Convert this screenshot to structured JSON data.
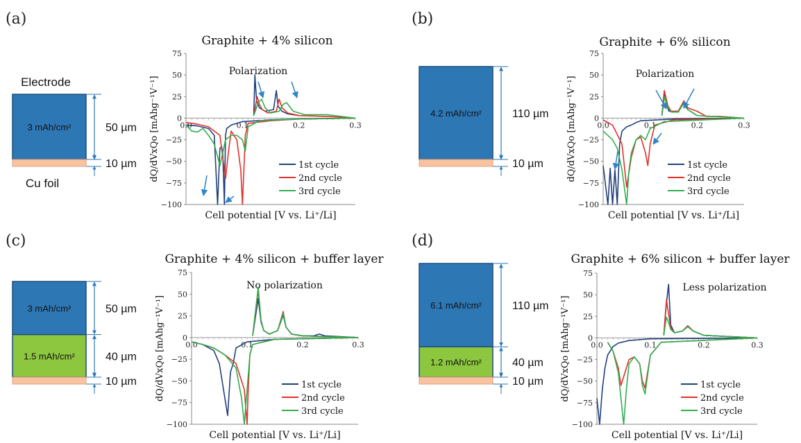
{
  "panels": [
    {
      "label": "(a)",
      "diagram": {
        "electrode_label": "Electrode",
        "foil_label": "Cu foil",
        "layers": [
          {
            "text": "3 mAh/cm²",
            "thickness": "50 µm",
            "color": "#2e77b5"
          }
        ],
        "foil_thickness": "10 µm"
      },
      "chart": {
        "title": "Graphite + 4% silicon",
        "annotation": "Polarization",
        "xlabel": "Cell potential [V vs. Li⁺/Li]",
        "ylabel": "dQ/dVxQo [mAhg⁻¹V⁻¹]"
      }
    },
    {
      "label": "(b)",
      "diagram": {
        "electrode_label": "",
        "foil_label": "",
        "layers": [
          {
            "text": "4.2 mAh/cm²",
            "thickness": "110 µm",
            "color": "#2e77b5"
          }
        ],
        "foil_thickness": "10 µm"
      },
      "chart": {
        "title": "Graphite + 6% silicon",
        "annotation": "Polarization",
        "xlabel": "Cell potential [V vs. Li⁺/Li]",
        "ylabel": "dQ/dVxQo [mAhg⁻¹V⁻¹]"
      }
    },
    {
      "label": "(c)",
      "diagram": {
        "electrode_label": "",
        "foil_label": "",
        "layers": [
          {
            "text": "3 mAh/cm²",
            "thickness": "50 µm",
            "color": "#2e77b5"
          },
          {
            "text": "1.5 mAh/cm²",
            "thickness": "40 µm",
            "color": "#8dc63f"
          }
        ],
        "foil_thickness": "10 µm"
      },
      "chart": {
        "title": "Graphite + 4% silicon + buffer layer",
        "annotation": "No polarization",
        "xlabel": "Cell potential [V vs. Li⁺/Li]",
        "ylabel": "dQ/dVxQo [mAhg⁻¹V⁻¹]"
      }
    },
    {
      "label": "(d)",
      "diagram": {
        "electrode_label": "",
        "foil_label": "",
        "layers": [
          {
            "text": "6.1 mAh/cm²",
            "thickness": "110 µm",
            "color": "#2e77b5"
          },
          {
            "text": "1.2 mAh/cm²",
            "thickness": "40 µm",
            "color": "#8dc63f"
          }
        ],
        "foil_thickness": "10 µm"
      },
      "chart": {
        "title": "Graphite + 6% silicon + buffer layer",
        "annotation": "Less polarization",
        "xlabel": "Cell potential [V vs. Li⁺/Li]",
        "ylabel": "dQ/dVxQo [mAhg⁻¹V⁻¹]"
      }
    }
  ],
  "series_colors": {
    "1st cycle": "#1f3f7a",
    "2nd cycle": "#e0302a",
    "3rd cycle": "#2fae4e"
  },
  "foil_color": "#f7c3a0",
  "arrow_color": "#2e86c8",
  "chart_data": [
    {
      "type": "line",
      "title": "Graphite + 4% silicon",
      "xlabel": "Cell potential [V vs. Li⁺/Li]",
      "ylabel": "dQ/dVxQo [mAhg⁻¹V⁻¹]",
      "xlim": [
        0,
        0.3
      ],
      "ylim": [
        -100,
        75
      ],
      "xticks": [
        "0.0",
        "0.1",
        "0.2",
        "0.3"
      ],
      "yticks": [
        "75",
        "50",
        "25",
        "0",
        "-25",
        "-50",
        "-75",
        "-100"
      ],
      "legend_position": "bottom-right",
      "series": [
        {
          "name": "1st cycle",
          "x": [
            0.0,
            0.02,
            0.04,
            0.05,
            0.053,
            0.056,
            0.06,
            0.063,
            0.065,
            0.068,
            0.07,
            0.072,
            0.08,
            0.1,
            0.15,
            0.2,
            0.3
          ],
          "y": [
            -8,
            -9,
            -12,
            -20,
            -60,
            -100,
            -35,
            -33,
            -40,
            -100,
            -20,
            -12,
            -8,
            -4,
            -2,
            -1,
            0
          ]
        },
        {
          "name": "2nd cycle",
          "x": [
            0.0,
            0.02,
            0.04,
            0.06,
            0.07,
            0.075,
            0.08,
            0.09,
            0.097,
            0.1,
            0.105,
            0.11,
            0.15,
            0.2,
            0.3
          ],
          "y": [
            -5,
            -7,
            -10,
            -20,
            -70,
            -40,
            -15,
            -25,
            -60,
            -100,
            -20,
            -6,
            -3,
            -1,
            0
          ]
        },
        {
          "name": "3rd cycle",
          "x": [
            0.0,
            0.01,
            0.02,
            0.03,
            0.04,
            0.05,
            0.06,
            0.065,
            0.07,
            0.08,
            0.09,
            0.1,
            0.105,
            0.11,
            0.13,
            0.2,
            0.3
          ],
          "y": [
            -8,
            -15,
            -16,
            -12,
            -20,
            -30,
            -55,
            -40,
            -25,
            -20,
            -20,
            -25,
            -38,
            -10,
            -3,
            -1,
            0
          ]
        },
        {
          "name": "1st cycle",
          "x": [
            0.12,
            0.122,
            0.125,
            0.13,
            0.14,
            0.155,
            0.16,
            0.163,
            0.17,
            0.18,
            0.2
          ],
          "y": [
            3,
            50,
            20,
            12,
            8,
            10,
            32,
            14,
            8,
            5,
            3
          ]
        },
        {
          "name": "2nd cycle",
          "x": [
            0.12,
            0.126,
            0.13,
            0.135,
            0.145,
            0.16,
            0.165,
            0.17,
            0.18,
            0.2,
            0.25,
            0.3
          ],
          "y": [
            3,
            25,
            16,
            10,
            6,
            8,
            22,
            12,
            6,
            3,
            2,
            0
          ]
        },
        {
          "name": "3rd cycle",
          "x": [
            0.12,
            0.128,
            0.134,
            0.14,
            0.15,
            0.165,
            0.172,
            0.178,
            0.19,
            0.21,
            0.25,
            0.3
          ],
          "y": [
            3,
            18,
            22,
            12,
            6,
            8,
            16,
            18,
            8,
            4,
            4,
            0
          ]
        }
      ]
    },
    {
      "type": "line",
      "title": "Graphite + 6% silicon",
      "xlabel": "Cell potential [V vs. Li⁺/Li]",
      "ylabel": "dQ/dVxQo [mAhg⁻¹V⁻¹]",
      "xlim": [
        0,
        0.3
      ],
      "ylim": [
        -100,
        75
      ],
      "xticks": [
        "0.0",
        "0.1",
        "0.2",
        "0.3"
      ],
      "yticks": [
        "75",
        "50",
        "25",
        "0",
        "-25",
        "-50",
        "-75",
        "-100"
      ],
      "legend_position": "bottom-right",
      "series": [
        {
          "name": "1st cycle",
          "x": [
            0.0,
            0.01,
            0.015,
            0.02,
            0.025,
            0.03,
            0.035,
            0.04,
            0.05,
            0.06,
            0.07,
            0.08,
            0.15,
            0.3
          ],
          "y": [
            -55,
            -100,
            -58,
            -100,
            -60,
            -100,
            -30,
            -15,
            -10,
            -8,
            -5,
            -3,
            -1,
            0
          ]
        },
        {
          "name": "2nd cycle",
          "x": [
            0.0,
            0.02,
            0.04,
            0.05,
            0.06,
            0.07,
            0.08,
            0.09,
            0.095,
            0.1,
            0.11,
            0.15,
            0.3
          ],
          "y": [
            -2,
            -8,
            -30,
            -80,
            -45,
            -25,
            -22,
            -40,
            -55,
            -30,
            -8,
            -2,
            0
          ]
        },
        {
          "name": "3rd cycle",
          "x": [
            0.0,
            0.02,
            0.03,
            0.04,
            0.05,
            0.055,
            0.06,
            0.07,
            0.08,
            0.09,
            0.1,
            0.13,
            0.3
          ],
          "y": [
            -15,
            -25,
            -35,
            -60,
            -100,
            -60,
            -40,
            -25,
            -20,
            -25,
            -12,
            -4,
            0
          ]
        },
        {
          "name": "1st cycle",
          "x": [
            0.125,
            0.13,
            0.135,
            0.14,
            0.16,
            0.17,
            0.18,
            0.2
          ],
          "y": [
            3,
            30,
            15,
            8,
            8,
            18,
            10,
            3
          ]
        },
        {
          "name": "2nd cycle",
          "x": [
            0.125,
            0.13,
            0.138,
            0.145,
            0.16,
            0.172,
            0.18,
            0.2,
            0.22,
            0.25,
            0.3
          ],
          "y": [
            3,
            32,
            14,
            8,
            8,
            20,
            12,
            8,
            2,
            2,
            0
          ]
        },
        {
          "name": "3rd cycle",
          "x": [
            0.125,
            0.131,
            0.138,
            0.145,
            0.16,
            0.17,
            0.18,
            0.2,
            0.3
          ],
          "y": [
            3,
            25,
            12,
            7,
            7,
            16,
            10,
            3,
            0
          ]
        }
      ]
    },
    {
      "type": "line",
      "title": "Graphite + 4% silicon + buffer layer",
      "xlabel": "Cell potential [V vs. Li⁺/Li]",
      "ylabel": "dQ/dVxQo [mAhg⁻¹V⁻¹]",
      "xlim": [
        0,
        0.3
      ],
      "ylim": [
        -100,
        75
      ],
      "xticks": [
        "0.0",
        "0.1",
        "0.2",
        "0.3"
      ],
      "yticks": [
        "75",
        "50",
        "25",
        "0",
        "-25",
        "-50",
        "-75",
        "-100"
      ],
      "legend_position": "bottom-right",
      "series": [
        {
          "name": "1st cycle",
          "x": [
            0.0,
            0.02,
            0.04,
            0.05,
            0.06,
            0.065,
            0.07,
            0.075,
            0.08,
            0.1,
            0.15,
            0.3
          ],
          "y": [
            -5,
            -8,
            -15,
            -30,
            -70,
            -90,
            -40,
            -30,
            -12,
            -5,
            -2,
            0
          ]
        },
        {
          "name": "2nd cycle",
          "x": [
            0.0,
            0.02,
            0.04,
            0.06,
            0.08,
            0.095,
            0.1,
            0.102,
            0.105,
            0.11,
            0.15,
            0.3
          ],
          "y": [
            -5,
            -8,
            -12,
            -20,
            -30,
            -60,
            -100,
            -60,
            -20,
            -8,
            -2,
            0
          ]
        },
        {
          "name": "3rd cycle",
          "x": [
            0.0,
            0.02,
            0.04,
            0.06,
            0.08,
            0.09,
            0.095,
            0.1,
            0.105,
            0.11,
            0.15,
            0.3
          ],
          "y": [
            -5,
            -8,
            -12,
            -20,
            -35,
            -70,
            -100,
            -60,
            -20,
            -8,
            -2,
            0
          ]
        },
        {
          "name": "1st cycle",
          "x": [
            0.11,
            0.12,
            0.125,
            0.13,
            0.14,
            0.155,
            0.165,
            0.17,
            0.18,
            0.2,
            0.22,
            0.23,
            0.24,
            0.3
          ],
          "y": [
            2,
            45,
            18,
            8,
            4,
            8,
            26,
            12,
            4,
            2,
            2,
            4,
            2,
            0
          ]
        },
        {
          "name": "2nd cycle",
          "x": [
            0.11,
            0.12,
            0.125,
            0.13,
            0.14,
            0.155,
            0.165,
            0.17,
            0.18,
            0.2,
            0.3
          ],
          "y": [
            2,
            55,
            20,
            8,
            4,
            8,
            30,
            12,
            4,
            2,
            0
          ]
        },
        {
          "name": "3rd cycle",
          "x": [
            0.11,
            0.12,
            0.125,
            0.13,
            0.14,
            0.155,
            0.165,
            0.17,
            0.18,
            0.2,
            0.3
          ],
          "y": [
            2,
            58,
            20,
            8,
            4,
            8,
            28,
            12,
            4,
            2,
            0
          ]
        }
      ]
    },
    {
      "type": "line",
      "title": "Graphite + 6% silicon + buffer layer",
      "xlabel": "Cell potential [V vs. Li⁺/Li]",
      "ylabel": "dQ/dVxQo [mAhg⁻¹V⁻¹]",
      "xlim": [
        0,
        0.3
      ],
      "ylim": [
        -100,
        75
      ],
      "xticks": [
        "0.0",
        "0.1",
        "0.2",
        "0.3"
      ],
      "yticks": [
        "75",
        "50",
        "25",
        "0",
        "-25",
        "-50",
        "-75",
        "-100"
      ],
      "legend_position": "bottom-right",
      "series": [
        {
          "name": "1st cycle",
          "x": [
            0.0,
            0.005,
            0.01,
            0.015,
            0.02,
            0.03,
            0.04,
            0.06,
            0.1,
            0.3
          ],
          "y": [
            -70,
            -100,
            -60,
            -35,
            -20,
            -10,
            -6,
            -3,
            -1,
            0
          ]
        },
        {
          "name": "2nd cycle",
          "x": [
            0.02,
            0.03,
            0.04,
            0.045,
            0.05,
            0.06,
            0.07,
            0.08,
            0.085,
            0.09,
            0.1,
            0.12,
            0.3
          ],
          "y": [
            -5,
            -15,
            -35,
            -55,
            -45,
            -25,
            -22,
            -30,
            -50,
            -58,
            -20,
            -5,
            0
          ]
        },
        {
          "name": "3rd cycle",
          "x": [
            0.02,
            0.03,
            0.04,
            0.045,
            0.05,
            0.055,
            0.06,
            0.07,
            0.08,
            0.085,
            0.09,
            0.1,
            0.12,
            0.3
          ],
          "y": [
            -5,
            -15,
            -40,
            -70,
            -100,
            -60,
            -30,
            -22,
            -30,
            -55,
            -65,
            -20,
            -5,
            0
          ]
        },
        {
          "name": "1st cycle",
          "x": [
            0.125,
            0.13,
            0.134,
            0.138,
            0.145,
            0.16,
            0.17,
            0.18,
            0.2,
            0.3
          ],
          "y": [
            3,
            40,
            62,
            15,
            6,
            8,
            14,
            8,
            3,
            0
          ]
        },
        {
          "name": "2nd cycle",
          "x": [
            0.125,
            0.13,
            0.134,
            0.138,
            0.145,
            0.16,
            0.17,
            0.18,
            0.2,
            0.3
          ],
          "y": [
            3,
            44,
            28,
            12,
            6,
            8,
            14,
            8,
            3,
            0
          ]
        },
        {
          "name": "3rd cycle",
          "x": [
            0.125,
            0.13,
            0.134,
            0.138,
            0.145,
            0.16,
            0.17,
            0.18,
            0.2,
            0.3
          ],
          "y": [
            3,
            24,
            18,
            10,
            6,
            8,
            13,
            8,
            3,
            0
          ]
        }
      ]
    }
  ]
}
